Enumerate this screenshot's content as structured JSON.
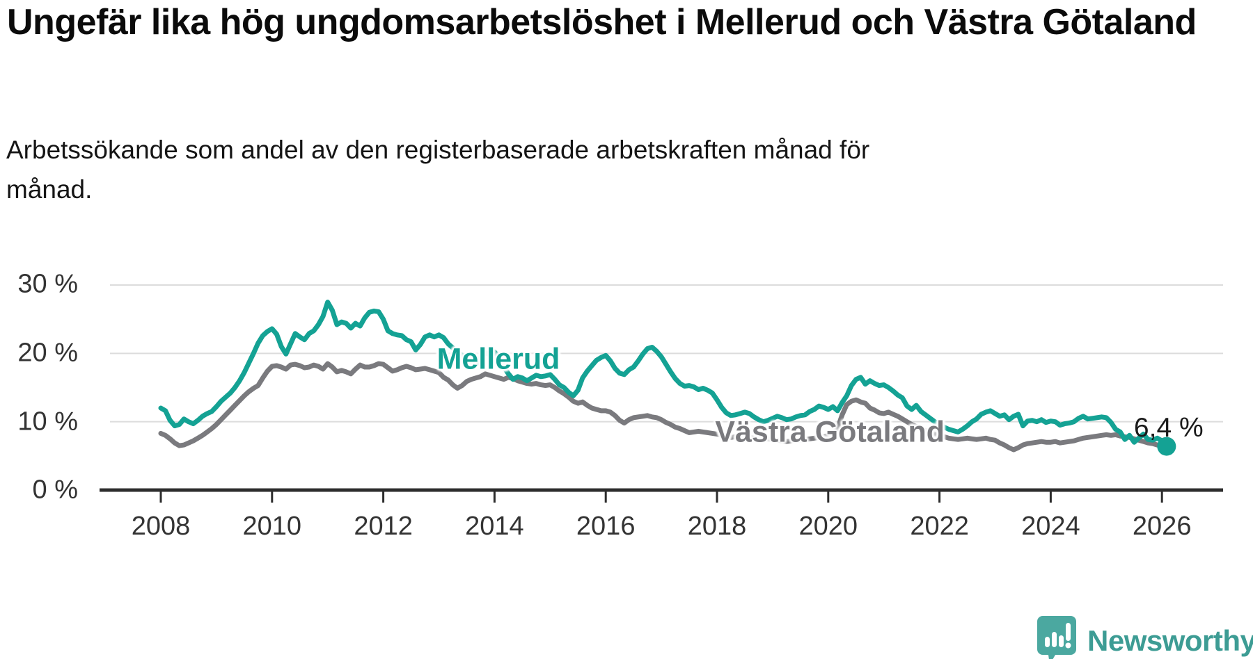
{
  "title": "Ungefär lika hög ungdomsarbetslöshet i Mellerud och Västra Götaland",
  "subtitle": "Arbetssökande som andel av den registerbaserade arbetskraften månad för månad.",
  "colors": {
    "mellerud": "#14a294",
    "vastra_gotaland": "#7a7a7e",
    "grid": "#dcdcdc",
    "axis": "#2d2d2d",
    "tick_text": "#333333",
    "annotation_text": "#1a1a1a",
    "logo_bubble": "#4ba8a0",
    "logo_text": "#3d9c94"
  },
  "branding": {
    "name": "Newsworthy"
  },
  "chart_data": {
    "type": "line",
    "title": "Ungefär lika hög ungdomsarbetslöshet i Mellerud och Västra Götaland",
    "xlabel": "",
    "ylabel": "",
    "xlim": [
      2007.1,
      2027.1
    ],
    "ylim": [
      0,
      30
    ],
    "grid": "horizontal",
    "legend": "inline-labels",
    "x_ticks": [
      2008,
      2010,
      2012,
      2014,
      2016,
      2018,
      2020,
      2022,
      2024,
      2026
    ],
    "x_tick_labels": [
      "2008",
      "2010",
      "2012",
      "2014",
      "2016",
      "2018",
      "2020",
      "2022",
      "2024",
      "2026"
    ],
    "y_ticks": [
      0,
      10,
      20,
      30
    ],
    "y_tick_labels": [
      "0 %",
      "10 %",
      "20 %",
      "30 %"
    ],
    "annotation": {
      "label": "6,4 %",
      "x": 2026.12,
      "y": 6.4
    },
    "series": [
      {
        "name": "Västra Götaland",
        "color": "#7a7a7e",
        "label_pos": {
          "x": 2020.03,
          "y": 8.4
        },
        "start": 2008.0,
        "step_months": 1,
        "values": [
          8.3,
          8.0,
          7.5,
          6.9,
          6.5,
          6.6,
          6.9,
          7.2,
          7.6,
          8.0,
          8.5,
          9.0,
          9.6,
          10.3,
          11.0,
          11.7,
          12.4,
          13.1,
          13.8,
          14.4,
          14.9,
          15.3,
          16.4,
          17.4,
          18.1,
          18.2,
          18.0,
          17.7,
          18.3,
          18.4,
          18.2,
          17.9,
          18.0,
          18.3,
          18.1,
          17.7,
          18.5,
          18.0,
          17.3,
          17.5,
          17.3,
          17.0,
          17.7,
          18.3,
          18.0,
          18.0,
          18.2,
          18.5,
          18.4,
          17.9,
          17.4,
          17.6,
          17.9,
          18.1,
          17.9,
          17.6,
          17.7,
          17.8,
          17.6,
          17.4,
          17.2,
          16.5,
          16.1,
          15.4,
          14.9,
          15.3,
          15.9,
          16.2,
          16.4,
          16.6,
          17.0,
          16.8,
          16.6,
          16.4,
          16.2,
          16.5,
          16.3,
          16.0,
          15.8,
          15.6,
          15.5,
          15.6,
          15.4,
          15.3,
          15.4,
          15.0,
          14.5,
          14.1,
          13.6,
          13.0,
          12.7,
          12.9,
          12.4,
          12.0,
          11.8,
          11.6,
          11.6,
          11.4,
          10.9,
          10.2,
          9.8,
          10.3,
          10.6,
          10.7,
          10.8,
          10.9,
          10.7,
          10.6,
          10.3,
          9.9,
          9.6,
          9.2,
          9.0,
          8.7,
          8.4,
          8.5,
          8.6,
          8.5,
          8.4,
          8.3,
          8.2,
          8.0,
          7.8,
          7.7,
          7.8,
          7.9,
          7.8,
          7.7,
          7.6,
          7.5,
          7.4,
          7.5,
          7.4,
          7.3,
          7.2,
          7.1,
          7.2,
          7.3,
          7.3,
          7.4,
          7.5,
          7.6,
          7.7,
          7.8,
          8.0,
          8.3,
          9.0,
          11.0,
          12.5,
          13.0,
          13.2,
          12.9,
          12.7,
          12.0,
          11.7,
          11.3,
          11.2,
          11.4,
          11.1,
          10.8,
          10.4,
          10.0,
          9.6,
          9.3,
          9.0,
          8.7,
          8.4,
          8.2,
          8.0,
          7.8,
          7.6,
          7.5,
          7.4,
          7.5,
          7.6,
          7.5,
          7.4,
          7.5,
          7.6,
          7.4,
          7.3,
          6.9,
          6.6,
          6.2,
          5.9,
          6.2,
          6.6,
          6.8,
          6.9,
          7.0,
          7.1,
          7.0,
          7.0,
          7.1,
          6.9,
          7.0,
          7.1,
          7.2,
          7.4,
          7.6,
          7.7,
          7.8,
          7.9,
          8.0,
          8.1,
          8.0,
          8.1,
          7.9,
          7.8,
          7.7,
          7.5,
          7.3,
          7.1,
          6.9,
          6.8,
          6.6,
          6.4,
          6.3
        ]
      },
      {
        "name": "Mellerud",
        "color": "#14a294",
        "label_pos": {
          "x": 2014.07,
          "y": 19.1
        },
        "end_dot": true,
        "end_value_label": "6,4 %",
        "start": 2008.0,
        "step_months": 1,
        "values": [
          12.0,
          11.6,
          10.2,
          9.4,
          9.6,
          10.4,
          10.0,
          9.7,
          10.2,
          10.8,
          11.2,
          11.5,
          12.2,
          13.0,
          13.6,
          14.2,
          15.0,
          16.0,
          17.2,
          18.6,
          20.0,
          21.5,
          22.6,
          23.2,
          23.6,
          22.8,
          21.0,
          19.9,
          21.4,
          22.9,
          22.4,
          22.0,
          22.9,
          23.3,
          24.2,
          25.4,
          27.5,
          26.3,
          24.2,
          24.6,
          24.4,
          23.7,
          24.4,
          24.0,
          25.2,
          26.0,
          26.2,
          26.1,
          25.0,
          23.3,
          22.9,
          22.7,
          22.6,
          22.0,
          21.7,
          20.5,
          21.3,
          22.4,
          22.7,
          22.4,
          22.7,
          22.3,
          21.4,
          20.8,
          20.2,
          19.7,
          19.2,
          18.8,
          18.4,
          19.3,
          20.1,
          19.8,
          20.2,
          19.4,
          18.0,
          17.0,
          16.2,
          16.6,
          16.4,
          16.0,
          16.4,
          16.8,
          16.6,
          16.7,
          16.9,
          16.2,
          15.4,
          15.0,
          14.3,
          13.8,
          14.6,
          16.4,
          17.4,
          18.2,
          19.0,
          19.4,
          19.7,
          18.9,
          17.8,
          17.1,
          16.9,
          17.6,
          18.0,
          18.9,
          19.9,
          20.7,
          20.9,
          20.3,
          19.5,
          18.4,
          17.3,
          16.3,
          15.6,
          15.2,
          15.3,
          15.1,
          14.7,
          14.9,
          14.6,
          14.2,
          13.2,
          12.1,
          11.3,
          10.9,
          11.0,
          11.2,
          11.4,
          11.2,
          10.7,
          10.3,
          10.0,
          10.2,
          10.5,
          10.8,
          10.6,
          10.3,
          10.4,
          10.7,
          10.9,
          11.0,
          11.5,
          11.8,
          12.3,
          12.1,
          11.8,
          12.2,
          11.6,
          12.8,
          13.8,
          15.3,
          16.2,
          16.5,
          15.5,
          16.0,
          15.6,
          15.3,
          15.4,
          15.0,
          14.5,
          13.9,
          13.5,
          12.3,
          11.8,
          12.4,
          11.5,
          11.0,
          10.5,
          10.0,
          9.6,
          9.2,
          8.9,
          8.7,
          8.5,
          8.9,
          9.4,
          10.0,
          10.4,
          11.1,
          11.4,
          11.6,
          11.2,
          10.8,
          11.0,
          10.3,
          10.8,
          11.1,
          9.4,
          10.1,
          10.2,
          10.0,
          10.3,
          9.9,
          10.1,
          10.0,
          9.5,
          9.7,
          9.8,
          10.0,
          10.5,
          10.8,
          10.4,
          10.5,
          10.6,
          10.7,
          10.6,
          9.9,
          8.9,
          8.5,
          7.4,
          8.0,
          7.0,
          7.6,
          8.2,
          7.4,
          7.3,
          7.6,
          7.2,
          6.4
        ]
      }
    ]
  }
}
